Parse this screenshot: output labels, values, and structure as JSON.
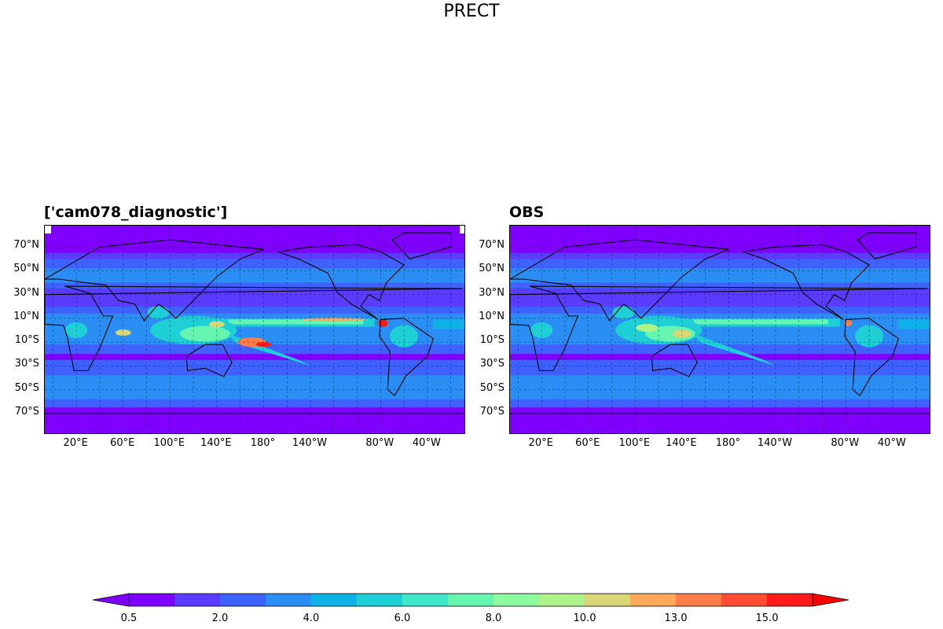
{
  "figure": {
    "title": "PRECT"
  },
  "panels": [
    {
      "id": "model",
      "title": "['cam078_diagnostic']"
    },
    {
      "id": "obs",
      "title": "OBS"
    }
  ],
  "chart_data": {
    "type": "heatmap",
    "title": "PRECT",
    "projection": "PlateCarree (central longitude ~180°)",
    "lat_tick_labels": [
      "70°N",
      "50°N",
      "30°N",
      "10°N",
      "10°S",
      "30°S",
      "50°S",
      "70°S"
    ],
    "lon_tick_labels": [
      "20°E",
      "60°E",
      "100°E",
      "140°E",
      "180°",
      "140°W",
      "80°W",
      "40°W"
    ],
    "grid": true,
    "colorbar": {
      "orientation": "horizontal",
      "extend": "both",
      "levels": [
        0.5,
        1.0,
        2.0,
        3.0,
        4.0,
        5.0,
        6.0,
        7.0,
        8.0,
        9.0,
        10.0,
        11.0,
        13.0,
        14.0,
        15.0,
        17.0
      ],
      "tick_labels": [
        "0.5",
        "2.0",
        "4.0",
        "6.0",
        "8.0",
        "10.0",
        "13.0",
        "15.0"
      ],
      "colors": [
        "#8000ff",
        "#5b3bff",
        "#3f62ff",
        "#2b8ef5",
        "#0fb2e8",
        "#1ecfd6",
        "#3fe8c8",
        "#66f5b0",
        "#8efaa0",
        "#aef28a",
        "#d8d676",
        "#ffa85a",
        "#ff7d48",
        "#ff4c32",
        "#ff1a1a"
      ],
      "under_color": "#8000ff",
      "over_color": "#ff0000"
    },
    "series": [
      {
        "name": "['cam078_diagnostic']",
        "max_region": "western tropical Pacific / Panama coast"
      },
      {
        "name": "OBS",
        "max_region": "Maritime continent / Panama coast"
      }
    ]
  }
}
